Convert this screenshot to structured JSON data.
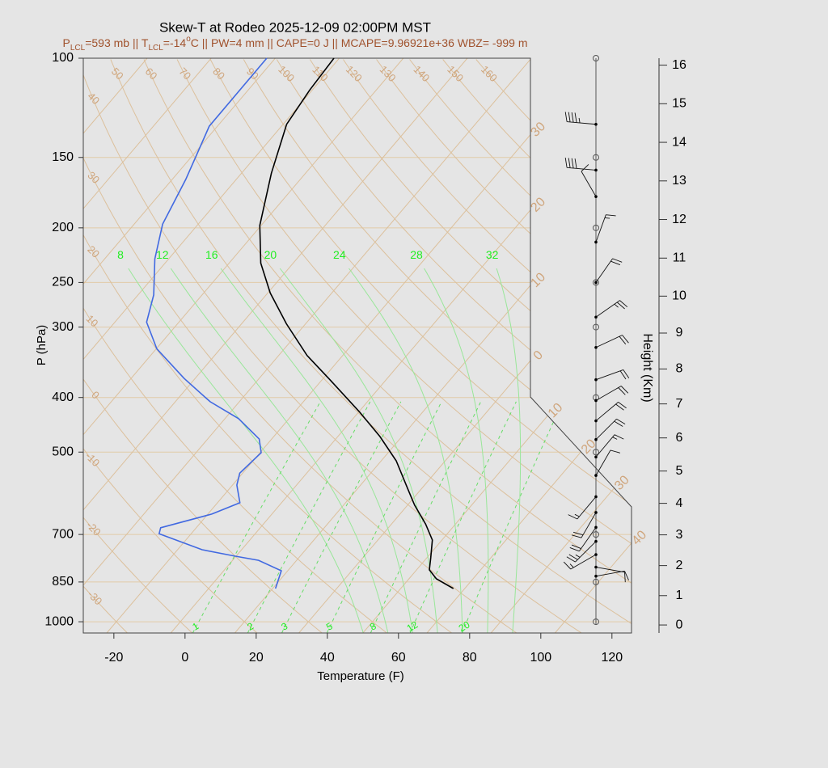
{
  "chart_data": {
    "type": "skewt",
    "title": "Skew-T at Rodeo 2025-12-09 02:00PM MST",
    "subtitle": [
      {
        "text": "P"
      },
      {
        "text": "LCL",
        "shift": "sub"
      },
      {
        "text": "=593 mb || T"
      },
      {
        "text": "LCL",
        "shift": "sub"
      },
      {
        "text": "=-14"
      },
      {
        "text": "o",
        "shift": "super"
      },
      {
        "text": "C || PW=4 mm || CAPE=0 J || MCAPE=9.96921e+36 WBZ= -999 m"
      }
    ],
    "subtitle_color": "#a0522d",
    "xlabel": "Temperature (F)",
    "ylabel": "P (hPa)",
    "y2label": "Height (Km)",
    "xlim": [
      -28.6,
      125.5
    ],
    "xticks": [
      -20,
      0,
      20,
      40,
      60,
      80,
      100,
      120
    ],
    "ylim": [
      1047,
      100
    ],
    "log_y": true,
    "yticks": [
      100,
      150,
      200,
      250,
      300,
      400,
      500,
      700,
      850,
      1000
    ],
    "y2ticks": [
      0,
      1,
      2,
      3,
      4,
      5,
      6,
      7,
      8,
      9,
      10,
      11,
      12,
      13,
      14,
      15,
      16
    ],
    "grid_color": "#e2cba8",
    "series": [
      {
        "color": "#000000",
        "pressure": [
          873,
          839,
          809,
          770,
          716,
          671,
          621,
          582,
          518,
          469,
          425,
          372,
          337,
          296,
          261,
          231,
          198,
          160,
          131,
          114,
          100
        ],
        "values": [
          64.8,
          57.7,
          53.6,
          51.1,
          47.3,
          41.6,
          34.0,
          28.3,
          18.2,
          7.8,
          -3.6,
          -19.8,
          -32.0,
          -45.4,
          -57.3,
          -67.1,
          -76.4,
          -85.6,
          -93.0,
          -94.7,
          -95.5
        ]
      },
      {
        "color": "#4169e1",
        "pressure": [
          873,
          812,
          778,
          765,
          745,
          698,
          681,
          644,
          615,
          572,
          545,
          501,
          474,
          436,
          407,
          370,
          328,
          294,
          263,
          227,
          197,
          164,
          132,
          100
        ],
        "values": [
          14.8,
          12.2,
          3.3,
          -4.2,
          -15.1,
          -31.0,
          -32.0,
          -20.9,
          -15.7,
          -20.8,
          -22.8,
          -21.7,
          -25.5,
          -36.2,
          -48.2,
          -61.1,
          -75.8,
          -85.1,
          -89.6,
          -97.9,
          -104.0,
          -108.2,
          -114.3,
          -114.4
        ]
      }
    ],
    "isotherms": {
      "color": "#dcc09c",
      "values": [
        -110,
        -100,
        -90,
        -80,
        -70,
        -60,
        -50,
        -40,
        -30,
        -20,
        -10,
        0,
        10,
        20,
        30,
        40
      ],
      "labels": [
        {
          "value": -30,
          "label": "30"
        },
        {
          "value": -20,
          "label": "20"
        },
        {
          "value": -10,
          "label": "10"
        },
        0,
        10,
        20,
        30,
        40
      ]
    },
    "dry_adiabats": {
      "color": "#dcc09c",
      "values": [
        -30,
        -20,
        -10,
        0,
        10,
        20,
        30,
        40,
        50,
        60,
        70,
        80,
        90,
        100,
        110,
        120,
        130,
        140,
        150,
        160
      ]
    },
    "moist_adiabats": {
      "color": "#99e699",
      "values": [
        8,
        12,
        16,
        20,
        24,
        28,
        32
      ]
    },
    "mixing_ratios": {
      "color": "#66dd66",
      "values": [
        1,
        2,
        3,
        5,
        8,
        12,
        20
      ]
    },
    "winds": {
      "pressure": [
        131,
        158,
        176,
        212,
        250,
        288,
        326,
        372,
        405,
        440,
        475,
        510,
        550,
        600,
        640,
        680,
        720,
        760,
        800,
        830
      ],
      "direction": [
        275,
        275,
        330,
        20,
        35,
        55,
        65,
        70,
        60,
        50,
        45,
        40,
        30,
        220,
        210,
        215,
        225,
        240,
        100,
        80
      ],
      "speed": [
        45,
        40,
        10,
        15,
        20,
        25,
        20,
        20,
        20,
        20,
        20,
        15,
        10,
        15,
        20,
        20,
        25,
        15,
        10,
        10
      ]
    }
  }
}
